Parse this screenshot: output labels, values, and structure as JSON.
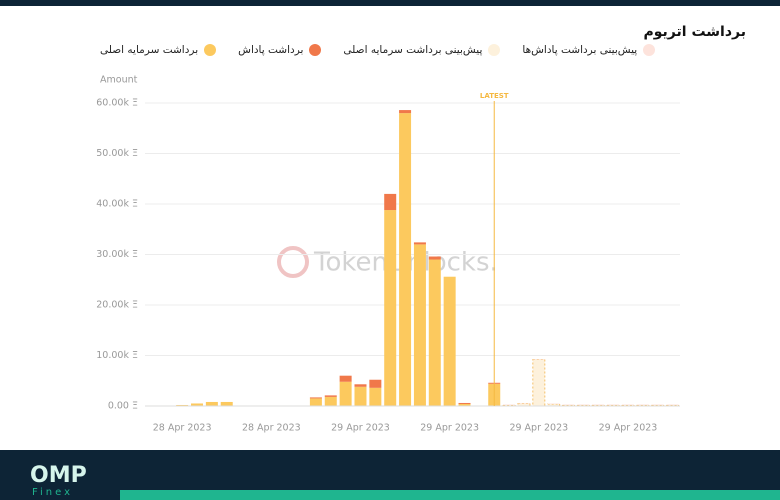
{
  "chart_data": {
    "type": "stacked-bar",
    "title": "برداشت اتریوم",
    "y_label": "Amount",
    "watermark": "TokenUnlocks.",
    "categories": [
      null,
      null,
      "28 Apr 2023",
      null,
      null,
      null,
      null,
      null,
      "28 Apr 2023",
      null,
      null,
      null,
      null,
      null,
      "29 Apr 2023",
      null,
      null,
      null,
      null,
      null,
      "29 Apr 2023",
      null,
      null,
      null,
      null,
      null,
      "29 Apr 2023",
      null,
      null,
      null,
      null,
      null,
      "29 Apr 2023",
      null,
      null,
      null
    ],
    "series": [
      {
        "name": "برداشت سرمایه اصلی",
        "color": "#fcc95e",
        "values": [
          100,
          100,
          200,
          500,
          800,
          800,
          100,
          100,
          100,
          100,
          100,
          1500,
          1800,
          4800,
          3800,
          3600,
          38800,
          58000,
          32000,
          29000,
          25600,
          400,
          100,
          4400,
          null,
          null,
          null,
          null,
          null,
          null,
          null,
          null,
          null,
          null,
          null,
          null
        ]
      },
      {
        "name": "برداشت پاداش",
        "color": "#f0784a",
        "values": [
          0,
          0,
          0,
          0,
          0,
          0,
          0,
          0,
          0,
          0,
          0,
          200,
          300,
          1200,
          500,
          1600,
          3200,
          600,
          400,
          600,
          0,
          200,
          0,
          200,
          null,
          null,
          null,
          null,
          null,
          null,
          null,
          null,
          null,
          null,
          null,
          null
        ]
      },
      {
        "name": "پیش‌بینی برداشت سرمایه اصلی",
        "color": "#fdf1dc",
        "border": "#f5c06a",
        "values": [
          null,
          null,
          null,
          null,
          null,
          null,
          null,
          null,
          null,
          null,
          null,
          null,
          null,
          null,
          null,
          null,
          null,
          null,
          null,
          null,
          null,
          null,
          null,
          null,
          200,
          500,
          9200,
          400,
          200,
          200,
          200,
          200,
          200,
          200,
          200,
          200
        ]
      },
      {
        "name": "پیش‌بینی برداشت پاداش‌ها",
        "color": "#fde3dc",
        "values": [
          null,
          null,
          null,
          null,
          null,
          null,
          null,
          null,
          null,
          null,
          null,
          null,
          null,
          null,
          null,
          null,
          null,
          null,
          null,
          null,
          null,
          null,
          null,
          null,
          100,
          100,
          100,
          100,
          100,
          100,
          100,
          100,
          100,
          100,
          100,
          100
        ]
      }
    ],
    "ylim": [
      0,
      60000
    ],
    "yticks": [
      {
        "value": 0,
        "label": "0.00 Ξ"
      },
      {
        "value": 10000,
        "label": "10.00k Ξ"
      },
      {
        "value": 20000,
        "label": "20.00k Ξ"
      },
      {
        "value": 30000,
        "label": "30.00k Ξ"
      },
      {
        "value": 40000,
        "label": "40.00k Ξ"
      },
      {
        "value": 50000,
        "label": "50.00k Ξ"
      },
      {
        "value": 60000,
        "label": "60.00k Ξ"
      }
    ],
    "grid": true,
    "annotations": [
      {
        "text": "LATEST",
        "category_index": 23,
        "color": "#f5b942"
      }
    ]
  },
  "footer": {
    "logo": "OMP",
    "sub": "Finex"
  }
}
